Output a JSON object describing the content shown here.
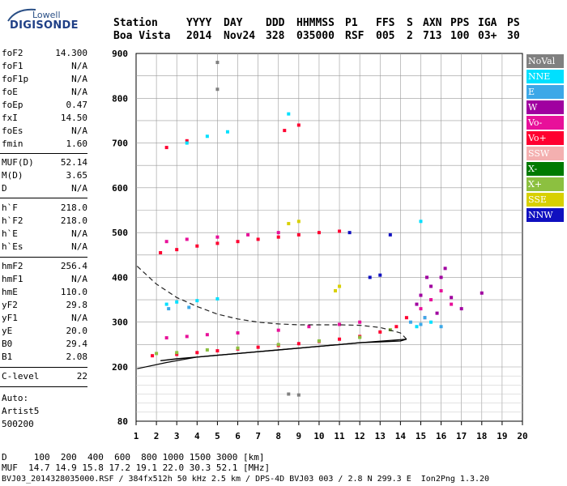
{
  "logo": {
    "top": "Lowell",
    "bottom": "DIGISONDE"
  },
  "header": {
    "row1": [
      "Station",
      "YYYY",
      "DAY",
      "DDD",
      "HHMMSS",
      "P1",
      "FFS",
      "S",
      "AXN",
      "PPS",
      "IGA",
      "PS"
    ],
    "row2": [
      "Boa Vista",
      "2014",
      "Nov24",
      "328",
      "035000",
      "RSF",
      "005",
      "2",
      "713",
      "100",
      "03+",
      "30"
    ]
  },
  "params": {
    "group1": [
      {
        "label": "foF2",
        "value": "14.300"
      },
      {
        "label": "foF1",
        "value": "N/A"
      },
      {
        "label": "foF1p",
        "value": "N/A"
      },
      {
        "label": "foE",
        "value": "N/A"
      },
      {
        "label": "foEp",
        "value": "0.47"
      },
      {
        "label": "fxI",
        "value": "14.50"
      },
      {
        "label": "foEs",
        "value": "N/A"
      },
      {
        "label": "fmin",
        "value": "1.60"
      }
    ],
    "group2": [
      {
        "label": "MUF(D)",
        "value": "52.14"
      },
      {
        "label": "M(D)",
        "value": "3.65"
      },
      {
        "label": "D",
        "value": "N/A"
      }
    ],
    "group3": [
      {
        "label": "h`F",
        "value": "218.0"
      },
      {
        "label": "h`F2",
        "value": "218.0"
      },
      {
        "label": "h`E",
        "value": "N/A"
      },
      {
        "label": "h`Es",
        "value": "N/A"
      }
    ],
    "group4": [
      {
        "label": "hmF2",
        "value": "256.4"
      },
      {
        "label": "hmF1",
        "value": "N/A"
      },
      {
        "label": "hmE",
        "value": "110.0"
      },
      {
        "label": "yF2",
        "value": "29.8"
      },
      {
        "label": "yF1",
        "value": "N/A"
      },
      {
        "label": "yE",
        "value": "20.0"
      },
      {
        "label": "B0",
        "value": "29.4"
      },
      {
        "label": "B1",
        "value": "2.08"
      }
    ],
    "group5": [
      {
        "label": "C-level",
        "value": "22"
      }
    ],
    "auto": [
      "Auto:",
      "Artist5",
      "500200"
    ]
  },
  "legend": [
    {
      "label": "NoVal",
      "color": "#808080"
    },
    {
      "label": "NNE",
      "color": "#00e0ff"
    },
    {
      "label": "E",
      "color": "#3ca8e8"
    },
    {
      "label": "W",
      "color": "#a000a0"
    },
    {
      "label": "Vo-",
      "color": "#e8109a"
    },
    {
      "label": "Vo+",
      "color": "#ff0030"
    },
    {
      "label": "SSW",
      "color": "#f4b0b0"
    },
    {
      "label": "X-",
      "color": "#007a00"
    },
    {
      "label": "X+",
      "color": "#8cc040"
    },
    {
      "label": "SSE",
      "color": "#d8d000"
    },
    {
      "label": "NNW",
      "color": "#1010c0"
    }
  ],
  "bottom": {
    "d_line": "D     100  200  400  600  800 1000 1500 3000 [km]",
    "muf_line": "MUF  14.7 14.9 15.8 17.2 19.1 22.0 30.3 52.1 [MHz]",
    "info_line": "BVJ03_2014328035000.RSF / 384fx512h 50 kHz 2.5 km / DPS-4D BVJ03 003 / 2.8 N 299.3 E  Ion2Png 1.3.20"
  },
  "chart_data": {
    "type": "scatter",
    "title": "",
    "xlabel": "",
    "ylabel": "",
    "xlim": [
      1,
      20
    ],
    "ylim": [
      80,
      900
    ],
    "x_ticks": [
      "1",
      "2",
      "3",
      "4",
      "5",
      "6",
      "7",
      "8",
      "9",
      "10",
      "11",
      "12",
      "13",
      "14",
      "15",
      "16",
      "17",
      "18",
      "19",
      "20"
    ],
    "y_ticks": [
      "80",
      "200",
      "300",
      "400",
      "500",
      "600",
      "700",
      "800",
      "900"
    ],
    "grid": true,
    "series": [
      {
        "name": "Vo+",
        "values": [
          [
            1.8,
            225
          ],
          [
            3,
            228
          ],
          [
            4,
            232
          ],
          [
            5,
            236
          ],
          [
            6,
            240
          ],
          [
            7,
            244
          ],
          [
            8,
            248
          ],
          [
            9,
            252
          ],
          [
            10,
            257
          ],
          [
            11,
            262
          ],
          [
            12,
            268
          ],
          [
            13,
            278
          ],
          [
            13.8,
            290
          ],
          [
            14.3,
            310
          ],
          [
            2.2,
            455
          ],
          [
            3,
            462
          ],
          [
            4,
            470
          ],
          [
            5,
            476
          ],
          [
            6,
            480
          ],
          [
            7,
            485
          ],
          [
            8,
            490
          ],
          [
            9,
            495
          ],
          [
            10,
            500
          ],
          [
            11,
            503
          ],
          [
            2.5,
            690
          ],
          [
            3.5,
            705
          ],
          [
            8.3,
            728
          ],
          [
            9,
            740
          ]
        ]
      },
      {
        "name": "Vo-",
        "values": [
          [
            2.5,
            265
          ],
          [
            3.5,
            268
          ],
          [
            4.5,
            272
          ],
          [
            6,
            276
          ],
          [
            8,
            282
          ],
          [
            9.5,
            290
          ],
          [
            11,
            295
          ],
          [
            12,
            300
          ],
          [
            2.5,
            480
          ],
          [
            3.5,
            485
          ],
          [
            5,
            490
          ],
          [
            6.5,
            495
          ],
          [
            8,
            500
          ],
          [
            15,
            330
          ],
          [
            15.5,
            350
          ],
          [
            16,
            370
          ],
          [
            16.5,
            340
          ],
          [
            15.2,
            310
          ]
        ]
      },
      {
        "name": "W",
        "values": [
          [
            15,
            360
          ],
          [
            15.5,
            380
          ],
          [
            16,
            400
          ],
          [
            16.5,
            355
          ],
          [
            17,
            330
          ],
          [
            15.3,
            400
          ],
          [
            16.2,
            420
          ],
          [
            14.8,
            340
          ],
          [
            15.8,
            320
          ],
          [
            18,
            365
          ]
        ]
      },
      {
        "name": "NNE",
        "values": [
          [
            2.5,
            340
          ],
          [
            3,
            345
          ],
          [
            4,
            348
          ],
          [
            5,
            352
          ],
          [
            3.5,
            700
          ],
          [
            4.5,
            715
          ],
          [
            5.5,
            725
          ],
          [
            8.5,
            765
          ],
          [
            15,
            525
          ],
          [
            15.5,
            300
          ],
          [
            14.8,
            290
          ]
        ]
      },
      {
        "name": "E",
        "values": [
          [
            14.5,
            300
          ],
          [
            15,
            295
          ],
          [
            15.2,
            310
          ],
          [
            16,
            290
          ],
          [
            2.6,
            330
          ],
          [
            3.6,
            333
          ]
        ]
      },
      {
        "name": "X+",
        "values": [
          [
            2,
            230
          ],
          [
            3,
            232
          ],
          [
            4.5,
            238
          ],
          [
            6,
            242
          ],
          [
            8,
            250
          ],
          [
            10,
            258
          ],
          [
            12,
            266
          ],
          [
            13.5,
            283
          ]
        ]
      },
      {
        "name": "SSE",
        "values": [
          [
            8.5,
            520
          ],
          [
            9,
            525
          ],
          [
            10.8,
            370
          ],
          [
            11,
            380
          ]
        ]
      },
      {
        "name": "NNW",
        "values": [
          [
            12.5,
            400
          ],
          [
            13,
            405
          ],
          [
            11.5,
            500
          ],
          [
            13.5,
            495
          ]
        ]
      },
      {
        "name": "NoVal",
        "values": [
          [
            8.5,
            140
          ],
          [
            9,
            138
          ],
          [
            5,
            880
          ],
          [
            5,
            820
          ]
        ]
      }
    ],
    "profile_curve": [
      [
        2.2,
        214
      ],
      [
        3,
        218
      ],
      [
        4,
        222
      ],
      [
        5,
        226
      ],
      [
        6,
        230
      ],
      [
        7,
        234
      ],
      [
        8,
        238
      ],
      [
        9,
        242
      ],
      [
        10,
        246
      ],
      [
        11,
        250
      ],
      [
        12,
        254
      ],
      [
        13,
        256
      ],
      [
        14,
        258
      ],
      [
        14.3,
        262
      ]
    ],
    "dashed_curve": [
      [
        1.05,
        425
      ],
      [
        2,
        385
      ],
      [
        3,
        355
      ],
      [
        4,
        335
      ],
      [
        5,
        318
      ],
      [
        6,
        307
      ],
      [
        7,
        300
      ],
      [
        8,
        296
      ],
      [
        9,
        294
      ],
      [
        10,
        294
      ],
      [
        11,
        294
      ],
      [
        12,
        293
      ],
      [
        13,
        288
      ],
      [
        14,
        276
      ],
      [
        14.3,
        262
      ]
    ],
    "lower_curve": [
      [
        1.05,
        196
      ],
      [
        2.5,
        210
      ],
      [
        4,
        222
      ],
      [
        6,
        230
      ],
      [
        8,
        238
      ],
      [
        10,
        246
      ],
      [
        12,
        254
      ],
      [
        14.3,
        262
      ]
    ]
  }
}
